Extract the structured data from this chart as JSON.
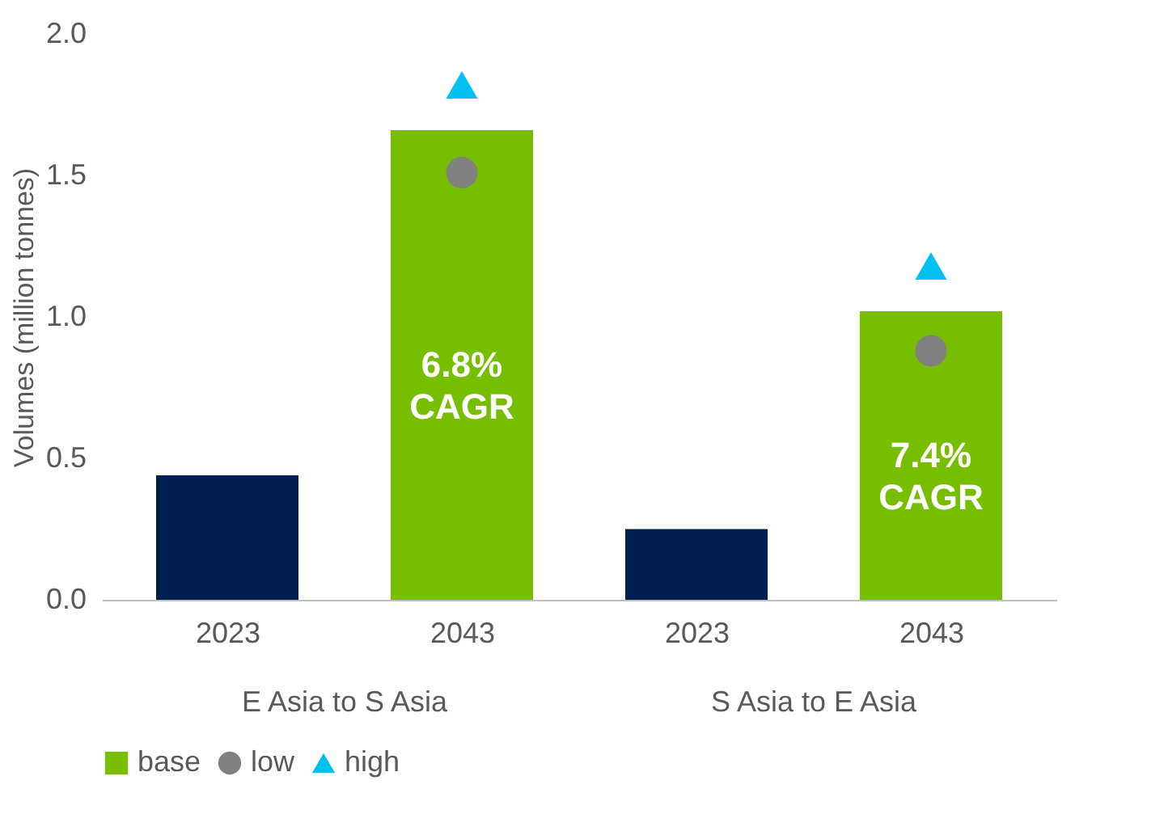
{
  "chart_data": {
    "type": "bar",
    "ylabel": "Volumes (million tonnes)",
    "categories": [
      "2023",
      "2043",
      "2023",
      "2043"
    ],
    "series": [
      {
        "name": "base",
        "color": "#78be00",
        "colors": [
          "#001e50",
          "#78be00",
          "#001e50",
          "#78be00"
        ],
        "values": [
          0.44,
          1.66,
          0.25,
          1.02
        ]
      },
      {
        "name": "low",
        "type": "scatter",
        "marker": "circle",
        "color": "#808080",
        "values": [
          null,
          1.51,
          null,
          0.88
        ]
      },
      {
        "name": "high",
        "type": "scatter",
        "marker": "triangle",
        "color": "#00c0f0",
        "values": [
          null,
          1.82,
          null,
          1.18
        ]
      }
    ],
    "annotations": [
      "E Asia to S Asia",
      "S Asia to E Asia",
      "6.8% CAGR",
      "7.4% CAGR"
    ],
    "ylim": [
      0,
      2
    ],
    "yticks": [
      {
        "value": 0,
        "label": "0.0"
      },
      {
        "value": 0.5,
        "label": "0.5"
      },
      {
        "value": 1,
        "label": "1.0"
      },
      {
        "value": 1.5,
        "label": "1.5"
      },
      {
        "value": 2,
        "label": "2.0"
      }
    ],
    "grid": false,
    "legend": "bottom"
  }
}
